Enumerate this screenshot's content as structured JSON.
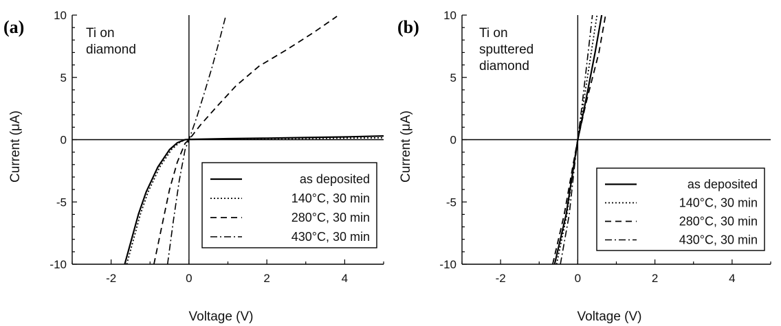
{
  "chart_data": [
    {
      "type": "line",
      "panel_label": "(a)",
      "annotation": [
        "Ti on",
        "diamond"
      ],
      "xlabel": "Voltage  (V)",
      "ylabel": "Current  (μA)",
      "xlim": [
        -3,
        5
      ],
      "ylim": [
        -10,
        10
      ],
      "xticks": [
        -2,
        0,
        2,
        4
      ],
      "yticks": [
        -10,
        -5,
        0,
        5,
        10
      ],
      "xtick_labels": [
        "-2",
        "0",
        "2",
        "4"
      ],
      "ytick_labels": [
        "-10",
        "-5",
        "0",
        "5",
        "10"
      ],
      "grid": false,
      "legend_position": "bottom-right",
      "series": [
        {
          "name": "as deposited",
          "style": "solid",
          "x": [
            -1.65,
            -1.5,
            -1.3,
            -1.1,
            -0.8,
            -0.5,
            -0.3,
            -0.1,
            0,
            1,
            2,
            3,
            4,
            5
          ],
          "y": [
            -10,
            -8.3,
            -6,
            -4.2,
            -2.2,
            -0.8,
            -0.25,
            0,
            0.02,
            0.08,
            0.12,
            0.17,
            0.22,
            0.3
          ]
        },
        {
          "name": "140°C, 30 min",
          "style": "dotted",
          "x": [
            -1.6,
            -1.45,
            -1.25,
            -1.05,
            -0.75,
            -0.45,
            -0.25,
            -0.1,
            0,
            1,
            2,
            3,
            4,
            5
          ],
          "y": [
            -10,
            -8.3,
            -6,
            -4.2,
            -2.2,
            -0.8,
            -0.25,
            0,
            0.02,
            0.05,
            0.08,
            0.1,
            0.12,
            0.15
          ]
        },
        {
          "name": "280°C, 30 min",
          "style": "dashed",
          "x": [
            -0.9,
            -0.7,
            -0.5,
            -0.3,
            -0.1,
            0,
            0.3,
            0.7,
            1.2,
            1.8,
            2.5,
            3.2,
            3.8
          ],
          "y": [
            -10,
            -7,
            -4,
            -1.8,
            -0.3,
            0,
            1.2,
            2.6,
            4.3,
            5.9,
            7.2,
            8.6,
            9.9
          ]
        },
        {
          "name": "430°C, 30 min",
          "style": "dashdot",
          "x": [
            -0.55,
            -0.4,
            -0.25,
            -0.1,
            0,
            0.2,
            0.4,
            0.6,
            0.8,
            0.95
          ],
          "y": [
            -10,
            -6.5,
            -3.3,
            -0.8,
            0,
            1.8,
            3.8,
            5.9,
            8.2,
            10
          ]
        }
      ]
    },
    {
      "type": "line",
      "panel_label": "(b)",
      "annotation": [
        "Ti on",
        "sputtered",
        "diamond"
      ],
      "xlabel": "Voltage  (V)",
      "ylabel": "Current  (μA)",
      "xlim": [
        -3,
        5
      ],
      "ylim": [
        -10,
        10
      ],
      "xticks": [
        -2,
        0,
        2,
        4
      ],
      "yticks": [
        -10,
        -5,
        0,
        5,
        10
      ],
      "xtick_labels": [
        "-2",
        "0",
        "2",
        "4"
      ],
      "ytick_labels": [
        "-10",
        "-5",
        "0",
        "5",
        "10"
      ],
      "grid": false,
      "legend_position": "bottom-right",
      "series": [
        {
          "name": "as deposited",
          "style": "solid",
          "x": [
            -0.6,
            -0.3,
            -0.1,
            0,
            0.2,
            0.45,
            0.62
          ],
          "y": [
            -10,
            -6,
            -2,
            0,
            3,
            7,
            10
          ]
        },
        {
          "name": "140°C, 30 min",
          "style": "dotted",
          "x": [
            -0.55,
            -0.28,
            -0.1,
            0,
            0.15,
            0.35,
            0.5
          ],
          "y": [
            -10,
            -6,
            -2,
            0,
            3,
            7,
            10
          ]
        },
        {
          "name": "280°C, 30 min",
          "style": "dashed",
          "x": [
            -0.65,
            -0.35,
            -0.12,
            0,
            0.22,
            0.55,
            0.72
          ],
          "y": [
            -10,
            -6,
            -2,
            0,
            3,
            7,
            10
          ]
        },
        {
          "name": "430°C, 30 min",
          "style": "dashdot",
          "x": [
            -0.45,
            -0.22,
            -0.08,
            0,
            0.12,
            0.27,
            0.38
          ],
          "y": [
            -10,
            -6,
            -2,
            0,
            3,
            7,
            10
          ]
        }
      ]
    }
  ]
}
